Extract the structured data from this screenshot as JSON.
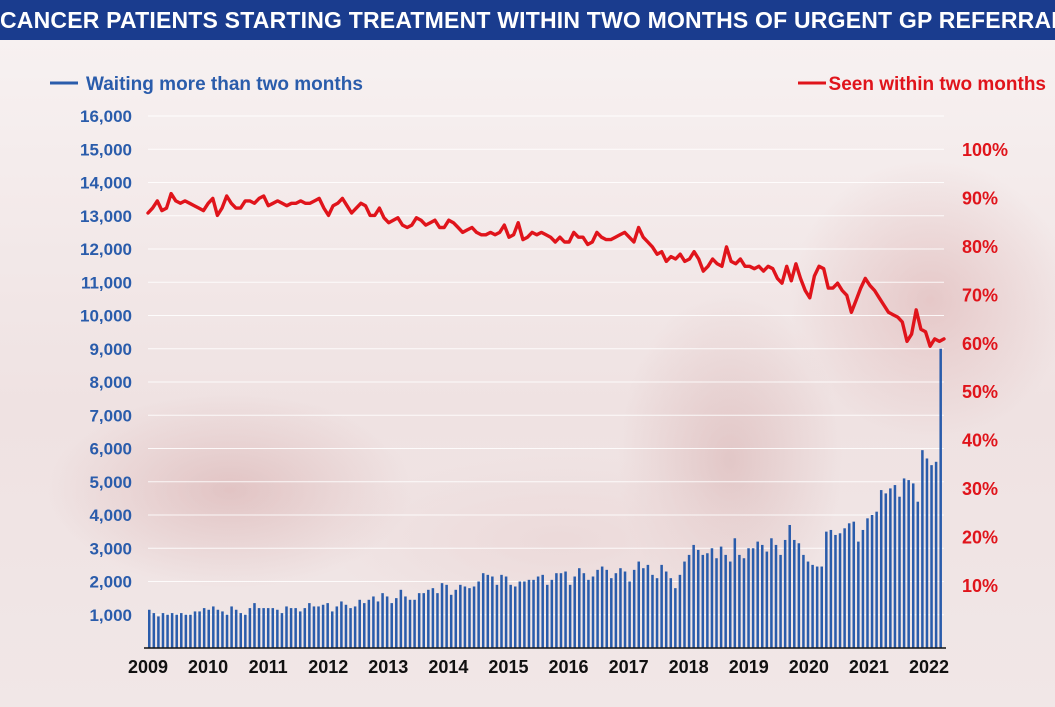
{
  "title": "CANCER PATIENTS STARTING TREATMENT WITHIN TWO MONTHS OF URGENT GP REFERRAL",
  "colors": {
    "title_bg": "#1a3c8e",
    "bars": "#2a5cab",
    "line": "#e0141b",
    "left_axis": "#2a5cab",
    "right_axis": "#e0141b"
  },
  "chart_data": {
    "type": "bar",
    "title": "CANCER PATIENTS STARTING TREATMENT WITHIN TWO MONTHS OF URGENT GP REFERRAL",
    "legend_left": "Waiting more than two months",
    "legend_right": "Seen within two months",
    "x_tick_labels": [
      "2009",
      "2010",
      "2011",
      "2012",
      "2013",
      "2014",
      "2015",
      "2016",
      "2017",
      "2018",
      "2019",
      "2020",
      "2021",
      "2022"
    ],
    "y_left": {
      "ticks": [
        1000,
        2000,
        3000,
        4000,
        5000,
        6000,
        7000,
        8000,
        9000,
        10000,
        11000,
        12000,
        13000,
        14000,
        15000,
        16000
      ],
      "tick_labels": [
        "1,000",
        "2,000",
        "3,000",
        "4,000",
        "5,000",
        "6,000",
        "7,000",
        "8,000",
        "9,000",
        "10,000",
        "11,000",
        "12,000",
        "13,000",
        "14,000",
        "15,000",
        "16,000"
      ],
      "range": [
        0,
        16000
      ]
    },
    "y_right": {
      "ticks": [
        10,
        20,
        30,
        40,
        50,
        60,
        70,
        80,
        90,
        100
      ],
      "tick_labels": [
        "10%",
        "20%",
        "30%",
        "40%",
        "50%",
        "60%",
        "70%",
        "80%",
        "90%",
        "100%"
      ],
      "range": [
        -2.8,
        100
      ]
    },
    "grid": "horizontal",
    "series": [
      {
        "name": "Waiting more than two months",
        "type": "bar",
        "axis": "left",
        "start": "2009-01",
        "frequency": "monthly",
        "values": [
          1150,
          1050,
          950,
          1050,
          1000,
          1050,
          1000,
          1050,
          1000,
          1000,
          1100,
          1100,
          1200,
          1150,
          1250,
          1150,
          1100,
          1000,
          1250,
          1150,
          1050,
          1000,
          1200,
          1350,
          1200,
          1200,
          1200,
          1200,
          1150,
          1050,
          1250,
          1200,
          1200,
          1100,
          1200,
          1350,
          1250,
          1250,
          1300,
          1350,
          1100,
          1250,
          1400,
          1300,
          1200,
          1250,
          1450,
          1350,
          1450,
          1550,
          1400,
          1650,
          1550,
          1350,
          1500,
          1750,
          1550,
          1450,
          1450,
          1650,
          1650,
          1750,
          1800,
          1650,
          1950,
          1900,
          1600,
          1750,
          1900,
          1850,
          1800,
          1850,
          2000,
          2250,
          2200,
          2150,
          1900,
          2200,
          2150,
          1900,
          1850,
          2000,
          2000,
          2050,
          2050,
          2150,
          2200,
          1900,
          2050,
          2250,
          2250,
          2300,
          1900,
          2150,
          2400,
          2250,
          2050,
          2150,
          2350,
          2450,
          2350,
          2100,
          2250,
          2400,
          2300,
          2000,
          2350,
          2600,
          2400,
          2500,
          2200,
          2100,
          2500,
          2300,
          2100,
          1800,
          2200,
          2600,
          2800,
          3100,
          2950,
          2800,
          2850,
          3000,
          2700,
          3050,
          2800,
          2600,
          3300,
          2800,
          2700,
          3000,
          3000,
          3200,
          3100,
          2900,
          3300,
          3100,
          2800,
          3250,
          3700,
          3250,
          3150,
          2800,
          2600,
          2500,
          2450,
          2450,
          3500,
          3550,
          3400,
          3450,
          3600,
          3750,
          3800,
          3200,
          3550,
          3900,
          4000,
          4100,
          4750,
          4650,
          4800,
          4900,
          4550,
          5100,
          5050,
          4950,
          4400,
          5950,
          5700,
          5500,
          5600,
          9000
        ]
      },
      {
        "name": "Seen within two months",
        "type": "line",
        "axis": "right",
        "start": "2009-01",
        "frequency": "monthly",
        "values": [
          87,
          88,
          89.5,
          87.5,
          88,
          91,
          89.5,
          89,
          89.5,
          89,
          88.5,
          88,
          87.5,
          89,
          90,
          86.5,
          88,
          90.5,
          89,
          88,
          88,
          89.5,
          89.5,
          89,
          90,
          90.5,
          88.5,
          89,
          89.5,
          89,
          88.5,
          89,
          89,
          89.5,
          89,
          89,
          89.5,
          90,
          88,
          86.5,
          88.5,
          89,
          90,
          88.5,
          87,
          88,
          89,
          88.5,
          86.5,
          86.5,
          88,
          86,
          85,
          85.5,
          86,
          84.5,
          84,
          84.5,
          86,
          85.5,
          84.5,
          85,
          85.5,
          84,
          84,
          85.5,
          85,
          84,
          83,
          83.5,
          84,
          83,
          82.5,
          82.5,
          83,
          82.5,
          83,
          84.5,
          82,
          82.5,
          85,
          81.5,
          82,
          83,
          82.5,
          83,
          82.5,
          82,
          81,
          82,
          81,
          81,
          83,
          82,
          82,
          80.5,
          81,
          83,
          82,
          81.5,
          81.5,
          82,
          82.5,
          83,
          82,
          81,
          84,
          82,
          81,
          80,
          78.5,
          79,
          77,
          78,
          77.5,
          78.5,
          77,
          77.5,
          79,
          77.5,
          75,
          76,
          77.5,
          76.5,
          76,
          80,
          77,
          76.5,
          77.5,
          76,
          76,
          75.5,
          76,
          75,
          76,
          75.5,
          73.5,
          72.5,
          76,
          73,
          76.5,
          73.5,
          71,
          69.5,
          74,
          76,
          75.5,
          71.5,
          71.5,
          72.5,
          71,
          70,
          66.5,
          69,
          71.5,
          73.5,
          72,
          71,
          69.5,
          68,
          66.5,
          66,
          65.5,
          64.5,
          60.5,
          62,
          67,
          63,
          62.5,
          59.5,
          61,
          60.5,
          61
        ]
      }
    ]
  }
}
